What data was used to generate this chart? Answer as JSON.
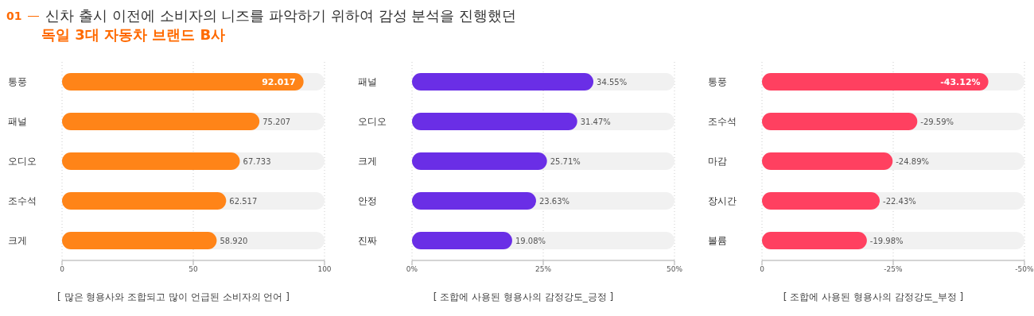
{
  "chart_data": [
    {
      "type": "bar",
      "orientation": "horizontal",
      "title": "신차 출시 이전에 소비자의 니즈를 파악하기 위하여 감성 분석을 진행했던",
      "subtitle": "독일 3대 자동차 브랜드 B사",
      "annotations": [
        "01"
      ],
      "xlabel": "[ 많은 형용사와 조합되고 많이 언급된 소비자의 언어 ]",
      "categories": [
        "통풍",
        "패널",
        "오디오",
        "조수석",
        "크게"
      ],
      "values": [
        92.017,
        75.207,
        67.733,
        62.517,
        58.92
      ],
      "value_labels": [
        "92.017",
        "75.207",
        "67.733",
        "62.517",
        "58.920"
      ],
      "color": "#ff8418",
      "xlim": [
        0,
        100
      ],
      "xticks": [
        0,
        50,
        100
      ],
      "grid": "x"
    },
    {
      "type": "bar",
      "orientation": "horizontal",
      "xlabel": "[ 조합에 사용된 형용사의 감정강도_긍정 ]",
      "categories": [
        "패널",
        "오디오",
        "크게",
        "안정",
        "진짜"
      ],
      "values": [
        34.55,
        31.47,
        25.71,
        23.63,
        19.08
      ],
      "value_labels": [
        "34.55%",
        "31.47%",
        "25.71%",
        "23.63%",
        "19.08%"
      ],
      "color": "#6a2ee6",
      "xlim": [
        0,
        50
      ],
      "xticks": [
        {
          "value": 0,
          "label": "0%"
        },
        {
          "value": 25,
          "label": "25%"
        },
        {
          "value": 50,
          "label": "50%"
        }
      ],
      "grid": "x"
    },
    {
      "type": "bar",
      "orientation": "horizontal",
      "xlabel": "[ 조합에 사용된 형용사의 감정강도_부정 ]",
      "categories": [
        "통풍",
        "조수석",
        "마감",
        "장시간",
        "볼륨"
      ],
      "values": [
        -43.12,
        -29.59,
        -24.89,
        -22.43,
        -19.98
      ],
      "value_labels": [
        "-43.12%",
        "-29.59%",
        "-24.89%",
        "-22.43%",
        "-19.98%"
      ],
      "color": "#ff4060",
      "xlim": [
        0,
        -50
      ],
      "xticks": [
        0,
        {
          "value": -25,
          "label": "-25%"
        },
        {
          "value": -50,
          "label": "-50%"
        }
      ],
      "grid": "x"
    }
  ]
}
